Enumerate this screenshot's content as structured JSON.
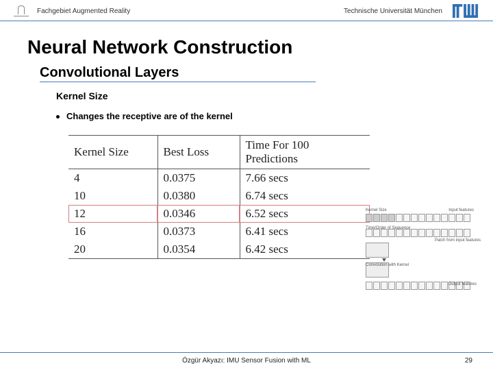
{
  "header": {
    "department": "Fachgebiet Augmented Reality",
    "university": "Technische Universität München",
    "accent_color": "#4a7ab0",
    "tum_logo_color": "#3070b3"
  },
  "title": "Neural Network Construction",
  "subtitle": "Convolutional Layers",
  "subsubtitle": "Kernel Size",
  "bullet": "Changes the receptive are of the kernel",
  "table": {
    "columns": [
      "Kernel Size",
      "Best Loss",
      "Time For 100 Predictions"
    ],
    "rows": [
      [
        "4",
        "0.0375",
        "7.66 secs"
      ],
      [
        "10",
        "0.0380",
        "6.74 secs"
      ],
      [
        "12",
        "0.0346",
        "6.52 secs"
      ],
      [
        "16",
        "0.0373",
        "6.41 secs"
      ],
      [
        "20",
        "0.0354",
        "6.42 secs"
      ]
    ],
    "highlight_row_index": 2,
    "font_family": "Georgia, serif",
    "border_color": "#555555",
    "highlight_border_color": "#d08080"
  },
  "diagram": {
    "labels": {
      "kernel": "Kernel Size",
      "input": "Input features",
      "time": "Time/Order of Sequence",
      "patch": "Patch from input features",
      "conv": "Convolution with Kernel",
      "output": "Output features"
    }
  },
  "footer": {
    "author": "Özgür Akyazı: IMU Sensor Fusion with ML",
    "page": "29"
  }
}
